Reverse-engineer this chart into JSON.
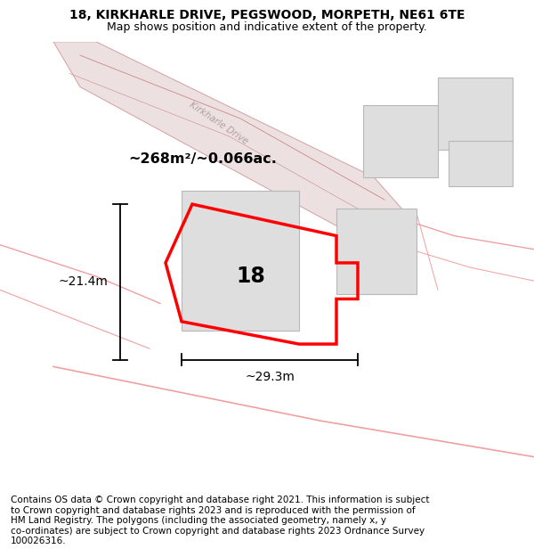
{
  "title_line1": "18, KIRKHARLE DRIVE, PEGSWOOD, MORPETH, NE61 6TE",
  "title_line2": "Map shows position and indicative extent of the property.",
  "footer_wrapped": "Contains OS data © Crown copyright and database right 2021. This information is subject\nto Crown copyright and database rights 2023 and is reproduced with the permission of\nHM Land Registry. The polygons (including the associated geometry, namely x, y\nco-ordinates) are subject to Crown copyright and database rights 2023 Ordnance Survey\n100026316.",
  "area_label": "~268m²/~0.066ac.",
  "street_label": "Kirkharle Drive",
  "number_label": "18",
  "dim_width": "~29.3m",
  "dim_height": "~21.4m",
  "bg_color": "#f0f0f0",
  "title_fontsize": 10,
  "subtitle_fontsize": 9,
  "footer_fontsize": 7.5
}
